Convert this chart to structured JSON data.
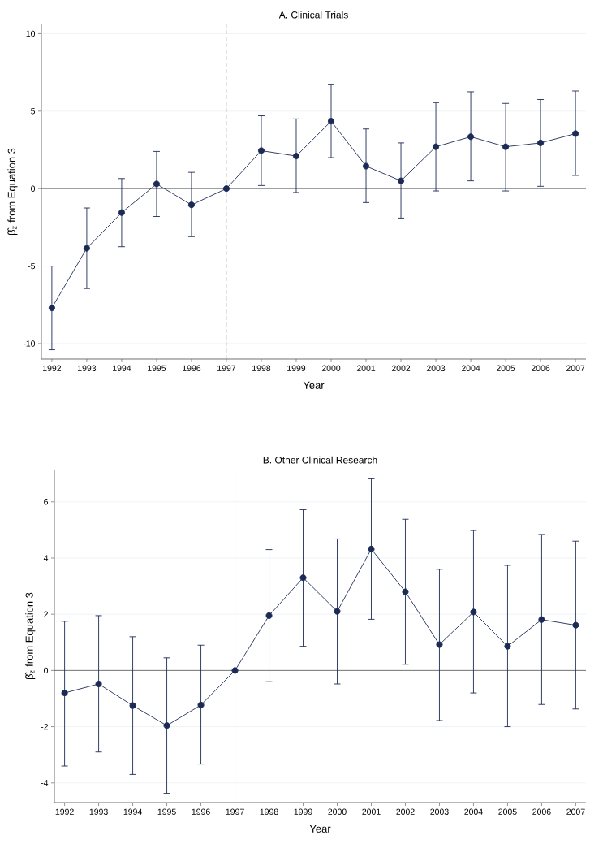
{
  "chart_data": [
    {
      "type": "line",
      "title": "A. Clinical Trials",
      "xlabel": "Year",
      "ylabel": "β̂$_{z}$ from Equation 3",
      "x": [
        1992,
        1993,
        1994,
        1995,
        1996,
        1997,
        1998,
        1999,
        2000,
        2001,
        2002,
        2003,
        2004,
        2005,
        2006,
        2007
      ],
      "series": [
        {
          "color": "#1c2a56",
          "values": [
            -7.7,
            -3.85,
            -1.55,
            0.3,
            -1.05,
            0,
            2.45,
            2.1,
            4.35,
            1.45,
            0.5,
            2.7,
            3.35,
            2.7,
            2.95,
            3.55
          ],
          "errors": [
            [
              -10.4,
              -5.0
            ],
            [
              -6.45,
              -1.25
            ],
            [
              -3.75,
              0.65
            ],
            [
              -1.8,
              2.4
            ],
            [
              -3.1,
              1.05
            ],
            null,
            [
              0.2,
              4.7
            ],
            [
              -0.25,
              4.5
            ],
            [
              2.0,
              6.7
            ],
            [
              -0.9,
              3.85
            ],
            [
              -1.9,
              2.95
            ],
            [
              -0.15,
              5.55
            ],
            [
              0.5,
              6.25
            ],
            [
              -0.15,
              5.5
            ],
            [
              0.15,
              5.75
            ],
            [
              0.85,
              6.3
            ]
          ]
        }
      ],
      "xlim": [
        1991.7,
        2007.3
      ],
      "ylim": [
        -11,
        10.6
      ],
      "xticks": [
        1992,
        1993,
        1994,
        1995,
        1996,
        1997,
        1998,
        1999,
        2000,
        2001,
        2002,
        2003,
        2004,
        2005,
        2006,
        2007
      ],
      "yticks": [
        -10,
        -5,
        0,
        5,
        10
      ],
      "ref_lines": [
        {
          "axis": "x",
          "value": 1997,
          "color": "#b0b0b0",
          "line_style": "dashed"
        },
        {
          "axis": "y",
          "value": 0,
          "color": "#555555",
          "line_style": "solid"
        }
      ],
      "grid": "y",
      "marker": "circle",
      "line_style": "solid"
    },
    {
      "type": "line",
      "title": "B. Other Clinical Research",
      "xlabel": "Year",
      "ylabel": "β̂$_{z}$ from Equation 3",
      "x": [
        1992,
        1993,
        1994,
        1995,
        1996,
        1997,
        1998,
        1999,
        2000,
        2001,
        2002,
        2003,
        2004,
        2005,
        2006,
        2007
      ],
      "series": [
        {
          "color": "#1c2a56",
          "values": [
            -0.8,
            -0.48,
            -1.25,
            -1.96,
            -1.23,
            0,
            1.95,
            3.3,
            2.1,
            4.32,
            2.8,
            0.92,
            2.08,
            0.86,
            1.81,
            1.61
          ],
          "errors": [
            [
              -3.4,
              1.75
            ],
            [
              -2.9,
              1.95
            ],
            [
              -3.7,
              1.2
            ],
            [
              -4.37,
              0.45
            ],
            [
              -3.33,
              0.9
            ],
            null,
            [
              -0.4,
              4.3
            ],
            [
              0.86,
              5.72
            ],
            [
              -0.48,
              4.68
            ],
            [
              1.82,
              6.82
            ],
            [
              0.22,
              5.38
            ],
            [
              -1.78,
              3.6
            ],
            [
              -0.8,
              4.98
            ],
            [
              -2.0,
              3.74
            ],
            [
              -1.21,
              4.84
            ],
            [
              -1.37,
              4.6
            ]
          ]
        }
      ],
      "xlim": [
        1991.7,
        2007.3
      ],
      "ylim": [
        -4.7,
        7.15
      ],
      "xticks": [
        1992,
        1993,
        1994,
        1995,
        1996,
        1997,
        1998,
        1999,
        2000,
        2001,
        2002,
        2003,
        2004,
        2005,
        2006,
        2007
      ],
      "yticks": [
        -4,
        -2,
        0,
        2,
        4,
        6
      ],
      "ref_lines": [
        {
          "axis": "x",
          "value": 1997,
          "color": "#b0b0b0",
          "line_style": "dashed"
        },
        {
          "axis": "y",
          "value": 0,
          "color": "#555555",
          "line_style": "solid"
        }
      ],
      "grid": "y",
      "marker": "circle",
      "line_style": "solid"
    }
  ]
}
